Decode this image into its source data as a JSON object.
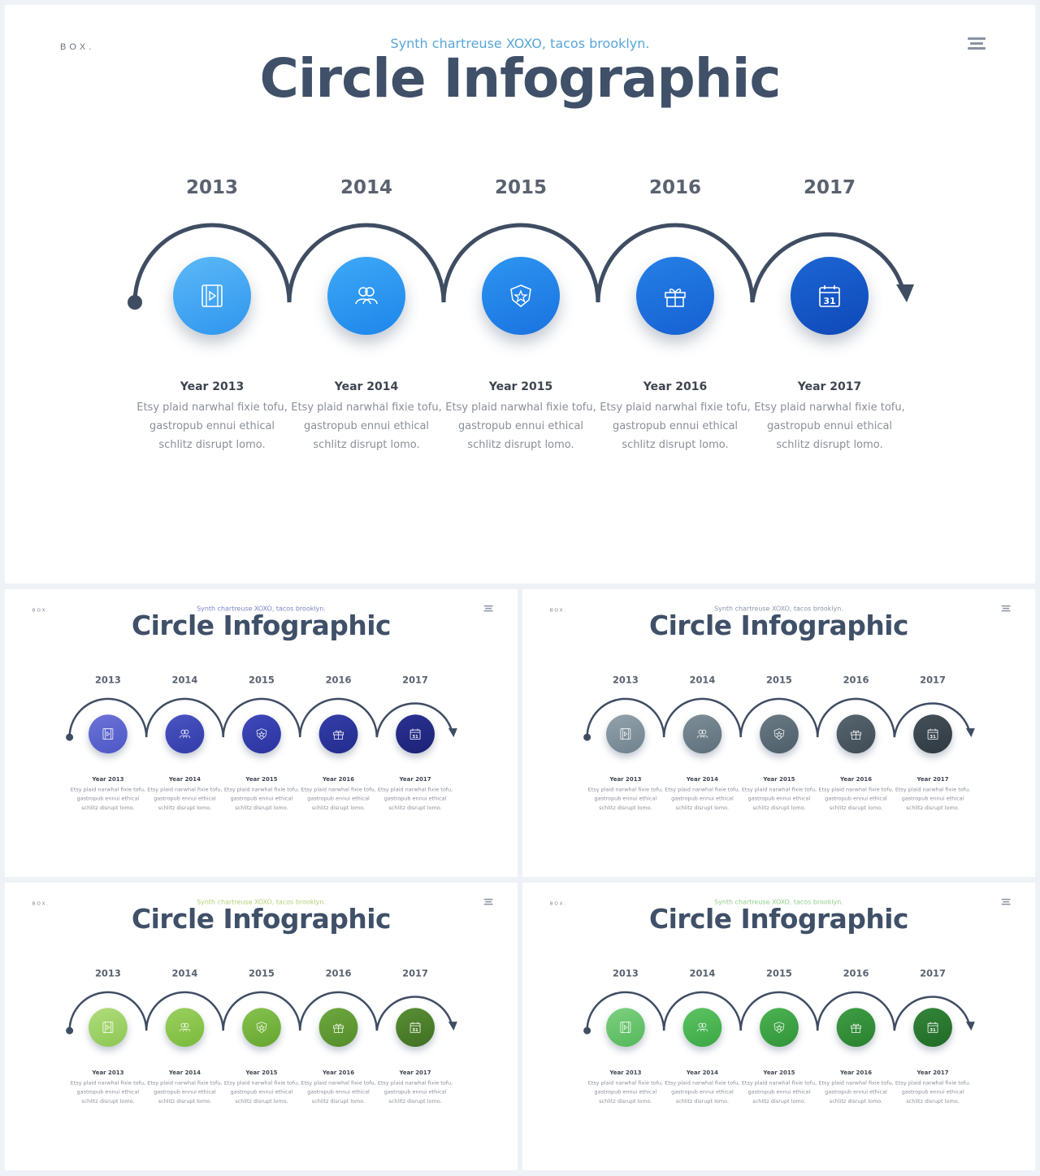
{
  "brand": "BOX.",
  "subtitle": "Synth chartreuse XOXO, tacos brooklyn.",
  "title": "Circle Infographic",
  "steps": [
    {
      "year": "2013",
      "label": "Year 2013",
      "desc": "Etsy plaid narwhal fixie tofu, gastropub ennui ethical schlitz disrupt lomo.",
      "icon": "film-icon"
    },
    {
      "year": "2014",
      "label": "Year 2014",
      "desc": "Etsy plaid narwhal fixie tofu, gastropub ennui ethical schlitz disrupt lomo.",
      "icon": "users-icon"
    },
    {
      "year": "2015",
      "label": "Year 2015",
      "desc": "Etsy plaid narwhal fixie tofu, gastropub ennui ethical schlitz disrupt lomo.",
      "icon": "badge-star-icon"
    },
    {
      "year": "2016",
      "label": "Year 2016",
      "desc": "Etsy plaid narwhal fixie tofu, gastropub ennui ethical schlitz disrupt lomo.",
      "icon": "gift-icon"
    },
    {
      "year": "2017",
      "label": "Year 2017",
      "desc": "Etsy plaid narwhal fixie tofu, gastropub ennui ethical schlitz disrupt lomo.",
      "icon": "calendar-icon",
      "icon_text": "31"
    }
  ],
  "colors": {
    "arc": "#3f4d63",
    "subtitle_variants": [
      "#5aa6d8",
      "#7b84c7",
      "#8a97a8",
      "#b5cf7a",
      "#8fcf8a"
    ]
  },
  "variants": [
    {
      "name": "blue",
      "circles": [
        [
          "#5cb8f7",
          "#2f96ee"
        ],
        [
          "#3ea8f7",
          "#1d86ea"
        ],
        [
          "#2d95f0",
          "#1a72e0"
        ],
        [
          "#2580e6",
          "#1660d2"
        ],
        [
          "#1c66d4",
          "#0f48b8"
        ]
      ]
    },
    {
      "name": "indigo",
      "circles": [
        [
          "#6c74d8",
          "#4d56c4"
        ],
        [
          "#4a54c2",
          "#323ca8"
        ],
        [
          "#3f49bb",
          "#2a339e"
        ],
        [
          "#343ea8",
          "#232b8c"
        ],
        [
          "#2a3192",
          "#1c2276"
        ]
      ]
    },
    {
      "name": "slate",
      "circles": [
        [
          "#93a3ad",
          "#6f818c"
        ],
        [
          "#7d8e98",
          "#5e6f7a"
        ],
        [
          "#6a7a85",
          "#4e5e69"
        ],
        [
          "#57656f",
          "#3f4c56"
        ],
        [
          "#45505a",
          "#2f3941"
        ]
      ]
    },
    {
      "name": "lime",
      "circles": [
        [
          "#b0dc7c",
          "#8cc753"
        ],
        [
          "#9bd05f",
          "#79ba3c"
        ],
        [
          "#86c24d",
          "#66a531"
        ],
        [
          "#6ea83f",
          "#548c2a"
        ],
        [
          "#5a8f35",
          "#406f22"
        ]
      ]
    },
    {
      "name": "green",
      "circles": [
        [
          "#7dd080",
          "#55b85a"
        ],
        [
          "#5cc363",
          "#3ba744"
        ],
        [
          "#4bb253",
          "#319438"
        ],
        [
          "#3e9d45",
          "#2a812f"
        ],
        [
          "#33863a",
          "#216a27"
        ]
      ]
    }
  ]
}
